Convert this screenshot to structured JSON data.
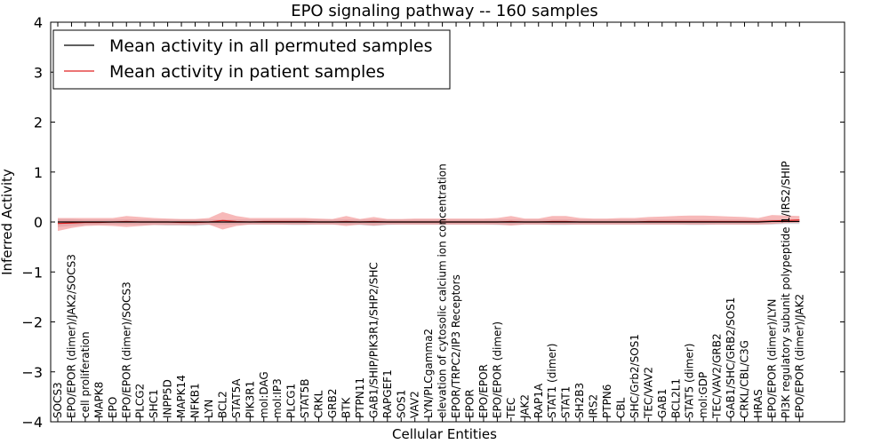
{
  "chart_data": {
    "type": "line",
    "title": "EPO signaling pathway -- 160 samples",
    "xlabel": "Cellular Entities",
    "ylabel": "Inferred Activity",
    "ylim": [
      -4,
      4
    ],
    "yticks": [
      4,
      3,
      2,
      1,
      0,
      -1,
      -2,
      -3,
      -4
    ],
    "ytick_labels": [
      "4",
      "3",
      "2",
      "1",
      "0",
      "−1",
      "−2",
      "−3",
      "−4"
    ],
    "legend_position": "top-left",
    "categories": [
      "SOCS3",
      "EPO/EPOR (dimer)/JAK2/SOCS3",
      "cell proliferation",
      "MAPK8",
      "EPO",
      "EPO/EPOR (dimer)/SOCS3",
      "PLCG2",
      "SHC1",
      "INPP5D",
      "MAPK14",
      "NFKB1",
      "LYN",
      "BCL2",
      "STAT5A",
      "PIK3R1",
      "mol:DAG",
      "mol:IP3",
      "PLCG1",
      "STAT5B",
      "CRKL",
      "GRB2",
      "BTK",
      "PTPN11",
      "GAB1/SHIP/PIK3R1/SHP2/SHC",
      "RAPGEF1",
      "SOS1",
      "VAV2",
      "LYN/PLCgamma2",
      "elevation of cytosolic calcium ion concentration",
      "EPOR/TRPC2/IP3 Receptors",
      "EPOR",
      "EPO/EPOR",
      "EPO/EPOR (dimer)",
      "TEC",
      "JAK2",
      "RAP1A",
      "STAT1 (dimer)",
      "STAT1",
      "SH2B3",
      "IRS2",
      "PTPN6",
      "CBL",
      "SHC/Grb2/SOS1",
      "TEC/VAV2",
      "GAB1",
      "BCL2L1",
      "STAT5 (dimer)",
      "mol:GDP",
      "TEC/VAV2/GRB2",
      "GAB1/SHC/GRB2/SOS1",
      "CRKL/CBL/C3G",
      "HRAS",
      "EPO/EPOR (dimer)/LYN",
      "PI3K regulatory subunit polypeptide 1/IRS2/SHIP",
      "EPO/EPOR (dimer)/JAK2"
    ],
    "series": [
      {
        "name": "Mean activity in all permuted samples",
        "color": "#000000",
        "band_color": "#c0c0c8",
        "values": [
          0.0,
          0.0,
          0.0,
          0.0,
          0.0,
          0.0,
          0.0,
          0.0,
          0.0,
          0.0,
          0.0,
          0.0,
          0.0,
          0.0,
          0.0,
          0.0,
          0.0,
          0.0,
          0.0,
          0.0,
          0.0,
          0.0,
          0.0,
          0.0,
          0.0,
          0.0,
          0.0,
          0.0,
          0.0,
          0.0,
          0.0,
          0.0,
          0.0,
          0.0,
          0.0,
          0.0,
          0.0,
          0.0,
          0.0,
          0.0,
          0.0,
          0.0,
          0.0,
          0.0,
          0.0,
          0.0,
          0.0,
          0.0,
          0.0,
          0.0,
          0.0,
          0.0,
          0.01,
          0.01,
          0.01
        ],
        "band_lower": [
          -0.1,
          -0.08,
          -0.06,
          -0.05,
          -0.05,
          -0.05,
          -0.06,
          -0.06,
          -0.07,
          -0.07,
          -0.08,
          -0.06,
          -0.06,
          -0.05,
          -0.05,
          -0.05,
          -0.05,
          -0.06,
          -0.06,
          -0.05,
          -0.05,
          -0.05,
          -0.06,
          -0.08,
          -0.06,
          -0.05,
          -0.05,
          -0.05,
          -0.05,
          -0.05,
          -0.05,
          -0.05,
          -0.06,
          -0.06,
          -0.05,
          -0.05,
          -0.06,
          -0.06,
          -0.05,
          -0.05,
          -0.05,
          -0.05,
          -0.05,
          -0.05,
          -0.05,
          -0.05,
          -0.06,
          -0.06,
          -0.05,
          -0.05,
          -0.05,
          -0.05,
          -0.05,
          -0.04,
          -0.04
        ],
        "band_upper": [
          0.06,
          0.06,
          0.05,
          0.05,
          0.05,
          0.05,
          0.05,
          0.05,
          0.05,
          0.05,
          0.05,
          0.05,
          0.05,
          0.05,
          0.05,
          0.05,
          0.05,
          0.05,
          0.05,
          0.05,
          0.05,
          0.05,
          0.05,
          0.05,
          0.05,
          0.05,
          0.05,
          0.05,
          0.05,
          0.05,
          0.05,
          0.05,
          0.05,
          0.05,
          0.05,
          0.05,
          0.05,
          0.05,
          0.05,
          0.05,
          0.05,
          0.05,
          0.05,
          0.05,
          0.05,
          0.05,
          0.05,
          0.05,
          0.05,
          0.05,
          0.05,
          0.05,
          0.05,
          0.05,
          0.05
        ]
      },
      {
        "name": "Mean activity in patient samples",
        "color": "#e02020",
        "band_color": "#f08080",
        "values": [
          -0.03,
          -0.02,
          -0.01,
          -0.01,
          0.0,
          0.01,
          0.0,
          0.0,
          0.0,
          -0.01,
          -0.01,
          0.0,
          0.03,
          0.01,
          0.0,
          0.01,
          0.01,
          0.01,
          0.01,
          0.0,
          0.0,
          0.01,
          0.0,
          0.01,
          0.0,
          0.0,
          0.0,
          0.0,
          0.0,
          0.0,
          0.0,
          0.0,
          0.0,
          0.01,
          0.0,
          0.0,
          0.01,
          0.01,
          0.0,
          0.0,
          0.0,
          0.0,
          0.0,
          0.01,
          0.01,
          0.01,
          0.01,
          0.01,
          0.01,
          0.01,
          0.01,
          0.01,
          0.02,
          0.03,
          0.04
        ],
        "band_lower": [
          -0.18,
          -0.12,
          -0.08,
          -0.07,
          -0.08,
          -0.1,
          -0.08,
          -0.06,
          -0.06,
          -0.06,
          -0.06,
          -0.05,
          -0.15,
          -0.08,
          -0.05,
          -0.05,
          -0.05,
          -0.05,
          -0.05,
          -0.05,
          -0.05,
          -0.08,
          -0.05,
          -0.07,
          -0.05,
          -0.05,
          -0.05,
          -0.05,
          -0.05,
          -0.05,
          -0.05,
          -0.05,
          -0.05,
          -0.07,
          -0.05,
          -0.05,
          -0.05,
          -0.05,
          -0.05,
          -0.05,
          -0.05,
          -0.05,
          -0.05,
          -0.05,
          -0.05,
          -0.05,
          -0.05,
          -0.05,
          -0.05,
          -0.05,
          -0.05,
          -0.05,
          -0.04,
          -0.02,
          -0.01
        ],
        "band_upper": [
          0.08,
          0.08,
          0.08,
          0.08,
          0.08,
          0.12,
          0.1,
          0.08,
          0.07,
          0.06,
          0.06,
          0.08,
          0.2,
          0.12,
          0.08,
          0.08,
          0.08,
          0.08,
          0.08,
          0.07,
          0.06,
          0.12,
          0.06,
          0.1,
          0.06,
          0.06,
          0.07,
          0.07,
          0.07,
          0.07,
          0.07,
          0.07,
          0.08,
          0.12,
          0.07,
          0.07,
          0.12,
          0.12,
          0.08,
          0.07,
          0.07,
          0.08,
          0.08,
          0.1,
          0.11,
          0.12,
          0.13,
          0.13,
          0.12,
          0.11,
          0.1,
          0.08,
          0.14,
          0.13,
          0.12
        ]
      }
    ]
  }
}
